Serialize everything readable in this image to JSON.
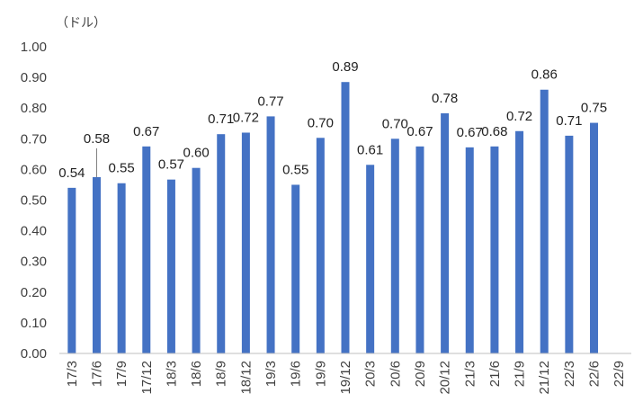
{
  "chart_data": {
    "type": "bar",
    "title": "",
    "unit_label": "（ドル）",
    "xlabel": "",
    "ylabel": "",
    "ylim": [
      0,
      1.0
    ],
    "yticks": [
      "0.00",
      "0.10",
      "0.20",
      "0.30",
      "0.40",
      "0.50",
      "0.60",
      "0.70",
      "0.80",
      "0.90",
      "1.00"
    ],
    "grid": false,
    "legend": "none",
    "bar_color": "#4472C4",
    "categories": [
      "17/3",
      "17/6",
      "17/9",
      "17/12",
      "18/3",
      "18/6",
      "18/9",
      "18/12",
      "19/3",
      "19/6",
      "19/9",
      "19/12",
      "20/3",
      "20/6",
      "20/9",
      "20/12",
      "21/3",
      "21/6",
      "21/9",
      "21/12",
      "22/3",
      "22/6",
      "22/9"
    ],
    "values": [
      0.54,
      0.575,
      0.555,
      0.675,
      0.567,
      0.605,
      0.715,
      0.72,
      0.773,
      0.55,
      0.703,
      0.885,
      0.615,
      0.7,
      0.675,
      0.783,
      0.672,
      0.675,
      0.725,
      0.86,
      0.71,
      0.752,
      null
    ],
    "data_labels": [
      "0.54",
      "0.58",
      "0.55",
      "0.67",
      "0.57",
      "0.60",
      "0.71",
      "0.72",
      "0.77",
      "0.55",
      "0.70",
      "0.89",
      "0.61",
      "0.70",
      "0.67",
      "0.78",
      "0.67",
      "0.68",
      "0.72",
      "0.86",
      "0.71",
      "0.75",
      ""
    ]
  }
}
